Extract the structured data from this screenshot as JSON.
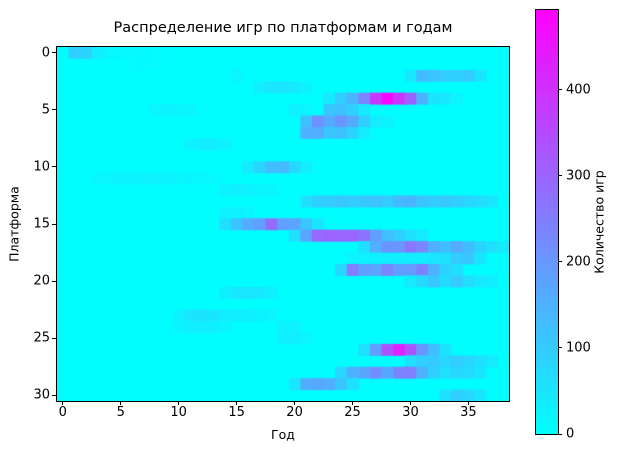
{
  "chart_data": {
    "type": "heatmap",
    "title": "Распределение игр по платформам и годам",
    "xlabel": "Год",
    "ylabel": "Платформа",
    "colorbar_label": "Количество игр",
    "colormap": "cool",
    "colormap_stops": [
      "#00ffff",
      "#ff00ff"
    ],
    "n_rows": 31,
    "n_cols": 39,
    "x_ticks": [
      0,
      5,
      10,
      15,
      20,
      25,
      30,
      35
    ],
    "y_ticks": [
      0,
      5,
      10,
      15,
      20,
      25,
      30
    ],
    "colorbar_ticks": [
      0,
      100,
      200,
      300,
      400
    ],
    "vmin": 0,
    "vmax": 493,
    "background_value": 2,
    "grid": false,
    "cells": [
      [
        0,
        1,
        90
      ],
      [
        0,
        2,
        85
      ],
      [
        0,
        3,
        35
      ],
      [
        0,
        4,
        15
      ],
      [
        0,
        5,
        12
      ],
      [
        0,
        6,
        10
      ],
      [
        0,
        7,
        10
      ],
      [
        0,
        8,
        8
      ],
      [
        1,
        6,
        8
      ],
      [
        1,
        7,
        10
      ],
      [
        1,
        8,
        8
      ],
      [
        2,
        15,
        20
      ],
      [
        2,
        30,
        45
      ],
      [
        2,
        31,
        130
      ],
      [
        2,
        32,
        115
      ],
      [
        2,
        33,
        95
      ],
      [
        2,
        34,
        90
      ],
      [
        2,
        35,
        100
      ],
      [
        2,
        36,
        55
      ],
      [
        3,
        17,
        30
      ],
      [
        3,
        18,
        50
      ],
      [
        3,
        19,
        50
      ],
      [
        3,
        20,
        40
      ],
      [
        3,
        21,
        25
      ],
      [
        4,
        23,
        40
      ],
      [
        4,
        24,
        95
      ],
      [
        4,
        25,
        145
      ],
      [
        4,
        26,
        235
      ],
      [
        4,
        27,
        385
      ],
      [
        4,
        28,
        480
      ],
      [
        4,
        29,
        395
      ],
      [
        4,
        30,
        305
      ],
      [
        4,
        31,
        150
      ],
      [
        4,
        32,
        55
      ],
      [
        4,
        33,
        45
      ],
      [
        4,
        34,
        20
      ],
      [
        5,
        8,
        20
      ],
      [
        5,
        9,
        25
      ],
      [
        5,
        10,
        20
      ],
      [
        5,
        11,
        15
      ],
      [
        5,
        20,
        25
      ],
      [
        5,
        21,
        20
      ],
      [
        5,
        23,
        110
      ],
      [
        5,
        24,
        120
      ],
      [
        5,
        25,
        90
      ],
      [
        5,
        26,
        40
      ],
      [
        6,
        21,
        120
      ],
      [
        6,
        22,
        215
      ],
      [
        6,
        23,
        165
      ],
      [
        6,
        24,
        205
      ],
      [
        6,
        25,
        165
      ],
      [
        6,
        26,
        95
      ],
      [
        6,
        27,
        35
      ],
      [
        6,
        28,
        25
      ],
      [
        7,
        21,
        150
      ],
      [
        7,
        22,
        160
      ],
      [
        7,
        23,
        110
      ],
      [
        7,
        24,
        120
      ],
      [
        7,
        25,
        85
      ],
      [
        7,
        26,
        35
      ],
      [
        8,
        11,
        25
      ],
      [
        8,
        12,
        35
      ],
      [
        8,
        13,
        35
      ],
      [
        8,
        14,
        25
      ],
      [
        10,
        16,
        40
      ],
      [
        10,
        17,
        80
      ],
      [
        10,
        18,
        125
      ],
      [
        10,
        19,
        135
      ],
      [
        10,
        20,
        80
      ],
      [
        10,
        21,
        35
      ],
      [
        11,
        3,
        15
      ],
      [
        11,
        4,
        20
      ],
      [
        11,
        5,
        22
      ],
      [
        11,
        6,
        22
      ],
      [
        11,
        7,
        25
      ],
      [
        11,
        8,
        25
      ],
      [
        11,
        9,
        22
      ],
      [
        11,
        10,
        20
      ],
      [
        11,
        11,
        18
      ],
      [
        11,
        12,
        15
      ],
      [
        11,
        13,
        12
      ],
      [
        12,
        14,
        25
      ],
      [
        12,
        15,
        30
      ],
      [
        12,
        16,
        25
      ],
      [
        12,
        17,
        20
      ],
      [
        12,
        18,
        15
      ],
      [
        13,
        21,
        60
      ],
      [
        13,
        22,
        90
      ],
      [
        13,
        23,
        100
      ],
      [
        13,
        24,
        110
      ],
      [
        13,
        25,
        100
      ],
      [
        13,
        26,
        110
      ],
      [
        13,
        27,
        115
      ],
      [
        13,
        28,
        100
      ],
      [
        13,
        29,
        135
      ],
      [
        13,
        30,
        145
      ],
      [
        13,
        31,
        115
      ],
      [
        13,
        32,
        100
      ],
      [
        13,
        33,
        110
      ],
      [
        13,
        34,
        95
      ],
      [
        13,
        35,
        80
      ],
      [
        13,
        36,
        65
      ],
      [
        13,
        37,
        50
      ],
      [
        14,
        14,
        25
      ],
      [
        14,
        15,
        25
      ],
      [
        14,
        16,
        20
      ],
      [
        15,
        14,
        60
      ],
      [
        15,
        15,
        115
      ],
      [
        15,
        16,
        160
      ],
      [
        15,
        17,
        185
      ],
      [
        15,
        18,
        285
      ],
      [
        15,
        19,
        185
      ],
      [
        15,
        20,
        175
      ],
      [
        15,
        21,
        110
      ],
      [
        15,
        22,
        50
      ],
      [
        16,
        20,
        60
      ],
      [
        16,
        21,
        175
      ],
      [
        16,
        22,
        290
      ],
      [
        16,
        23,
        300
      ],
      [
        16,
        24,
        295
      ],
      [
        16,
        25,
        300
      ],
      [
        16,
        26,
        275
      ],
      [
        16,
        27,
        185
      ],
      [
        16,
        28,
        125
      ],
      [
        16,
        29,
        95
      ],
      [
        16,
        30,
        60
      ],
      [
        16,
        31,
        40
      ],
      [
        17,
        26,
        60
      ],
      [
        17,
        27,
        155
      ],
      [
        17,
        28,
        205
      ],
      [
        17,
        29,
        205
      ],
      [
        17,
        30,
        265
      ],
      [
        17,
        31,
        235
      ],
      [
        17,
        32,
        155
      ],
      [
        17,
        33,
        125
      ],
      [
        17,
        34,
        165
      ],
      [
        17,
        35,
        125
      ],
      [
        17,
        36,
        85
      ],
      [
        17,
        37,
        60
      ],
      [
        17,
        38,
        40
      ],
      [
        18,
        25,
        20
      ],
      [
        18,
        26,
        25
      ],
      [
        18,
        27,
        28
      ],
      [
        18,
        28,
        30
      ],
      [
        18,
        29,
        32
      ],
      [
        18,
        30,
        32
      ],
      [
        18,
        31,
        35
      ],
      [
        18,
        32,
        45
      ],
      [
        18,
        33,
        60
      ],
      [
        18,
        34,
        100
      ],
      [
        18,
        35,
        110
      ],
      [
        18,
        36,
        50
      ],
      [
        19,
        24,
        80
      ],
      [
        19,
        25,
        255
      ],
      [
        19,
        26,
        185
      ],
      [
        19,
        27,
        175
      ],
      [
        19,
        28,
        235
      ],
      [
        19,
        29,
        185
      ],
      [
        19,
        30,
        195
      ],
      [
        19,
        31,
        245
      ],
      [
        19,
        32,
        150
      ],
      [
        19,
        33,
        85
      ],
      [
        19,
        34,
        60
      ],
      [
        20,
        30,
        40
      ],
      [
        20,
        31,
        70
      ],
      [
        20,
        32,
        110
      ],
      [
        20,
        33,
        70
      ],
      [
        20,
        34,
        100
      ],
      [
        20,
        35,
        65
      ],
      [
        20,
        36,
        45
      ],
      [
        20,
        37,
        30
      ],
      [
        21,
        14,
        30
      ],
      [
        21,
        15,
        45
      ],
      [
        21,
        16,
        50
      ],
      [
        21,
        17,
        45
      ],
      [
        21,
        18,
        30
      ],
      [
        23,
        10,
        25
      ],
      [
        23,
        11,
        50
      ],
      [
        23,
        12,
        55
      ],
      [
        23,
        13,
        50
      ],
      [
        23,
        14,
        35
      ],
      [
        23,
        15,
        30
      ],
      [
        23,
        16,
        30
      ],
      [
        23,
        17,
        25
      ],
      [
        23,
        18,
        20
      ],
      [
        24,
        10,
        20
      ],
      [
        24,
        11,
        30
      ],
      [
        24,
        12,
        35
      ],
      [
        24,
        13,
        30
      ],
      [
        24,
        14,
        20
      ],
      [
        24,
        19,
        25
      ],
      [
        24,
        20,
        25
      ],
      [
        25,
        19,
        30
      ],
      [
        25,
        20,
        30
      ],
      [
        25,
        21,
        20
      ],
      [
        26,
        26,
        60
      ],
      [
        26,
        27,
        185
      ],
      [
        26,
        28,
        335
      ],
      [
        26,
        29,
        425
      ],
      [
        26,
        30,
        335
      ],
      [
        26,
        31,
        205
      ],
      [
        26,
        32,
        125
      ],
      [
        26,
        33,
        50
      ],
      [
        27,
        30,
        60
      ],
      [
        27,
        31,
        90
      ],
      [
        27,
        32,
        105
      ],
      [
        27,
        33,
        80
      ],
      [
        27,
        34,
        95
      ],
      [
        27,
        35,
        80
      ],
      [
        27,
        36,
        60
      ],
      [
        27,
        37,
        40
      ],
      [
        28,
        24,
        80
      ],
      [
        28,
        25,
        150
      ],
      [
        28,
        26,
        170
      ],
      [
        28,
        27,
        220
      ],
      [
        28,
        28,
        170
      ],
      [
        28,
        29,
        240
      ],
      [
        28,
        30,
        250
      ],
      [
        28,
        31,
        150
      ],
      [
        28,
        32,
        90
      ],
      [
        28,
        33,
        60
      ],
      [
        28,
        34,
        80
      ],
      [
        28,
        35,
        70
      ],
      [
        28,
        36,
        50
      ],
      [
        29,
        20,
        50
      ],
      [
        29,
        21,
        160
      ],
      [
        29,
        22,
        170
      ],
      [
        29,
        23,
        160
      ],
      [
        29,
        24,
        110
      ],
      [
        29,
        25,
        60
      ],
      [
        30,
        33,
        60
      ],
      [
        30,
        34,
        90
      ],
      [
        30,
        35,
        80
      ],
      [
        30,
        36,
        50
      ]
    ]
  }
}
